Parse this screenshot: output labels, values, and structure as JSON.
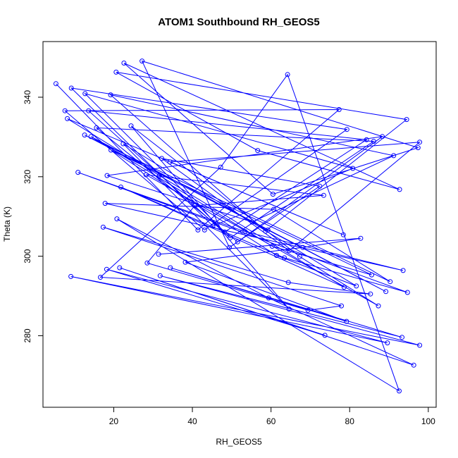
{
  "chart_data": {
    "type": "line",
    "title": "ATOM1 Southbound RH_GEOS5",
    "xlabel": "RH_GEOS5",
    "ylabel": "Theta (K)",
    "xlim": [
      2,
      102
    ],
    "ylim": [
      262,
      354
    ],
    "x_ticks": [
      20,
      40,
      60,
      80,
      100
    ],
    "y_ticks": [
      280,
      300,
      320,
      340
    ],
    "grid": false,
    "markers": "open-circle",
    "color": "#0000ff",
    "series": [
      {
        "points": [
          [
            5.3,
            343.4
          ],
          [
            41.4,
            306.6
          ],
          [
            77.3,
            336.9
          ],
          [
            7.6,
            336.6
          ],
          [
            43.1,
            306.6
          ],
          [
            79.3,
            331.9
          ],
          [
            9.2,
            342.3
          ],
          [
            45.2,
            307.6
          ],
          [
            80.8,
            322.1
          ],
          [
            12.7,
            340.9
          ],
          [
            48.2,
            306.1
          ],
          [
            84.3,
            329.3
          ],
          [
            13.6,
            336.6
          ],
          [
            49.6,
            304.6
          ],
          [
            86.1,
            328.9
          ],
          [
            15.6,
            332.3
          ],
          [
            51.5,
            303.6
          ],
          [
            88.3,
            330.1
          ],
          [
            18.3,
            320.3
          ],
          [
            55.2,
            308.6
          ],
          [
            91.2,
            325.3
          ],
          [
            19.2,
            340.6
          ],
          [
            58.6,
            306.3
          ],
          [
            94.5,
            334.4
          ],
          [
            20.6,
            346.3
          ],
          [
            56.6,
            326.6
          ],
          [
            92.7,
            316.8
          ],
          [
            22.6,
            348.6
          ],
          [
            60.5,
            315.6
          ],
          [
            97.4,
            327.3
          ],
          [
            27.2,
            349.1
          ],
          [
            49.4,
            302.2
          ],
          [
            72.4,
            317.6
          ],
          [
            32.2,
            324.6
          ],
          [
            64.6,
            301.4
          ],
          [
            97.8,
            328.7
          ],
          [
            34.3,
            323.7
          ],
          [
            78.4,
            305.4
          ],
          [
            8.2,
            334.6
          ],
          [
            31.6,
            320.3
          ],
          [
            78.6,
            292.2
          ],
          [
            21.8,
            317.4
          ],
          [
            63.4,
            299.6
          ],
          [
            94.7,
            290.9
          ],
          [
            10.9,
            321.1
          ],
          [
            53.4,
            306.2
          ],
          [
            93.6,
            296.4
          ],
          [
            17.8,
            313.3
          ],
          [
            60.7,
            311.8
          ],
          [
            90.3,
            293.6
          ],
          [
            12.6,
            330.5
          ],
          [
            59.2,
            306.6
          ],
          [
            89.2,
            291.1
          ],
          [
            14.2,
            330.1
          ],
          [
            60.3,
            302.5
          ],
          [
            85.6,
            295.3
          ],
          [
            19.3,
            326.7
          ],
          [
            61.4,
            300.2
          ],
          [
            81.7,
            292.5
          ],
          [
            22.4,
            328.3
          ],
          [
            64.6,
            286.7
          ],
          [
            24.4,
            332.8
          ],
          [
            67.3,
            299.9
          ],
          [
            87.3,
            287.5
          ],
          [
            28.2,
            320.5
          ],
          [
            73.4,
            315.3
          ],
          [
            40.6,
            312.7
          ],
          [
            28.5,
            298.3
          ],
          [
            69.4,
            286.4
          ],
          [
            77.9,
            287.5
          ],
          [
            17.3,
            307.3
          ],
          [
            64.4,
            293.4
          ],
          [
            85.3,
            290.5
          ],
          [
            16.6,
            294.7
          ],
          [
            47.2,
            322.4
          ],
          [
            64.2,
            345.7
          ],
          [
            92.6,
            266.1
          ],
          [
            20.8,
            309.4
          ],
          [
            59.4,
            289.5
          ],
          [
            96.3,
            272.6
          ],
          [
            21.5,
            297.1
          ],
          [
            73.7,
            280.1
          ],
          [
            18.2,
            296.7
          ],
          [
            89.6,
            278.2
          ],
          [
            9.1,
            294.9
          ],
          [
            97.8,
            277.6
          ],
          [
            31.8,
            295.1
          ],
          [
            93.3,
            279.6
          ],
          [
            34.4,
            297.1
          ],
          [
            79.2,
            283.6
          ],
          [
            38.2,
            298.5
          ],
          [
            68.1,
            302.2
          ],
          [
            82.8,
            304.5
          ],
          [
            31.4,
            300.5
          ]
        ]
      }
    ]
  }
}
